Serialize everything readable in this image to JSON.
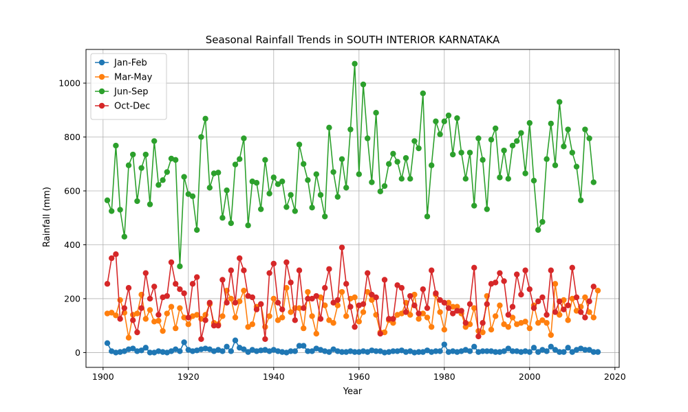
{
  "chart_data": {
    "type": "line",
    "title": "Seasonal Rainfall Trends in SOUTH INTERIOR KARNATAKA",
    "xlabel": "Year",
    "ylabel": "Rainfall (mm)",
    "xlim": [
      1896,
      2021
    ],
    "ylim": [
      -55,
      1125
    ],
    "xticks": [
      1900,
      1920,
      1940,
      1960,
      1980,
      2000,
      2020
    ],
    "yticks": [
      0,
      200,
      400,
      600,
      800,
      1000
    ],
    "grid": true,
    "legend_position": "top-left",
    "x_start": 1901,
    "series": [
      {
        "name": "Jan-Feb",
        "color": "#1f77b4",
        "values": [
          35,
          5,
          0,
          2,
          5,
          12,
          15,
          5,
          8,
          18,
          0,
          0,
          5,
          2,
          0,
          5,
          12,
          5,
          38,
          10,
          5,
          8,
          12,
          15,
          12,
          5,
          10,
          5,
          22,
          5,
          45,
          18,
          12,
          2,
          10,
          5,
          8,
          10,
          5,
          10,
          5,
          2,
          0,
          5,
          5,
          25,
          25,
          5,
          5,
          15,
          10,
          5,
          2,
          12,
          5,
          2,
          2,
          5,
          2,
          2,
          5,
          2,
          8,
          5,
          5,
          0,
          2,
          5,
          5,
          8,
          2,
          5,
          0,
          2,
          2,
          8,
          2,
          5,
          5,
          30,
          2,
          5,
          2,
          5,
          10,
          5,
          22,
          2,
          5,
          5,
          5,
          2,
          2,
          5,
          15,
          5,
          5,
          2,
          5,
          2,
          18,
          2,
          10,
          5,
          22,
          10,
          2,
          2,
          18,
          2,
          10,
          15,
          10,
          10,
          2,
          2
        ]
      },
      {
        "name": "Mar-May",
        "color": "#ff7f0e",
        "values": [
          145,
          148,
          138,
          195,
          148,
          55,
          140,
          145,
          215,
          125,
          158,
          115,
          118,
          80,
          145,
          170,
          90,
          165,
          130,
          105,
          135,
          140,
          125,
          140,
          180,
          110,
          105,
          135,
          230,
          200,
          130,
          190,
          230,
          95,
          105,
          170,
          180,
          95,
          135,
          200,
          120,
          130,
          240,
          150,
          165,
          165,
          90,
          225,
          135,
          70,
          205,
          175,
          120,
          110,
          175,
          225,
          135,
          200,
          205,
          115,
          150,
          225,
          195,
          140,
          75,
          75,
          120,
          110,
          140,
          145,
          185,
          140,
          215,
          125,
          145,
          130,
          95,
          215,
          150,
          85,
          185,
          170,
          170,
          145,
          95,
          105,
          165,
          80,
          75,
          210,
          85,
          135,
          175,
          105,
          95,
          130,
          105,
          110,
          115,
          90,
          175,
          110,
          120,
          110,
          65,
          255,
          140,
          195,
          120,
          200,
          155,
          170,
          205,
          150,
          130,
          230
        ]
      },
      {
        "name": "Jun-Sep",
        "color": "#2ca02c",
        "values": [
          565,
          525,
          768,
          530,
          430,
          695,
          735,
          562,
          685,
          735,
          550,
          785,
          622,
          640,
          670,
          720,
          715,
          320,
          652,
          588,
          580,
          455,
          800,
          868,
          612,
          665,
          668,
          500,
          602,
          480,
          698,
          718,
          795,
          472,
          635,
          630,
          532,
          715,
          590,
          650,
          625,
          635,
          540,
          585,
          525,
          772,
          700,
          640,
          538,
          662,
          585,
          505,
          835,
          670,
          578,
          718,
          612,
          828,
          1072,
          662,
          995,
          795,
          632,
          890,
          598,
          618,
          700,
          738,
          708,
          645,
          722,
          645,
          785,
          758,
          962,
          505,
          695,
          858,
          810,
          858,
          880,
          735,
          870,
          742,
          645,
          742,
          545,
          795,
          715,
          532,
          790,
          832,
          650,
          750,
          645,
          768,
          785,
          815,
          665,
          852,
          638,
          455,
          485,
          718,
          850,
          695,
          930,
          765,
          828,
          742,
          690,
          565,
          828,
          795,
          632
        ]
      },
      {
        "name": "Oct-Dec",
        "color": "#d62728",
        "values": [
          255,
          350,
          365,
          125,
          165,
          240,
          120,
          75,
          165,
          295,
          200,
          245,
          140,
          205,
          210,
          335,
          255,
          235,
          220,
          130,
          255,
          280,
          50,
          120,
          185,
          100,
          100,
          270,
          185,
          305,
          185,
          350,
          305,
          210,
          205,
          160,
          180,
          50,
          295,
          330,
          185,
          160,
          335,
          260,
          120,
          305,
          165,
          200,
          200,
          210,
          125,
          240,
          310,
          185,
          195,
          390,
          255,
          170,
          95,
          175,
          180,
          295,
          215,
          205,
          70,
          270,
          125,
          125,
          250,
          240,
          150,
          210,
          175,
          145,
          235,
          165,
          305,
          220,
          195,
          185,
          165,
          145,
          155,
          155,
          110,
          180,
          315,
          60,
          110,
          180,
          255,
          260,
          295,
          265,
          140,
          170,
          290,
          215,
          305,
          235,
          165,
          190,
          205,
          140,
          305,
          150,
          190,
          160,
          175,
          315,
          205,
          150,
          130,
          190,
          245
        ]
      }
    ]
  }
}
